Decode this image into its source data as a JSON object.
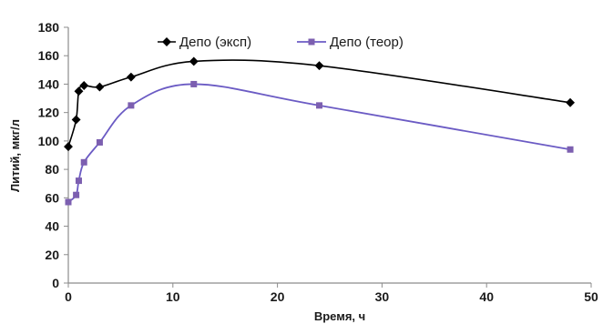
{
  "chart_data": {
    "type": "line",
    "xlabel": "Время, ч",
    "ylabel": "Литий, мкг/л",
    "xlim": [
      0,
      50
    ],
    "ylim": [
      0,
      180
    ],
    "x_ticks": [
      0,
      10,
      20,
      30,
      40,
      50
    ],
    "y_ticks": [
      0,
      20,
      40,
      60,
      80,
      100,
      120,
      140,
      160,
      180
    ],
    "grid": false,
    "legend": "top",
    "series": [
      {
        "name": "Депо (эксп)",
        "color": "#000000",
        "marker": "diamond",
        "x": [
          0,
          0.75,
          1,
          1.5,
          3,
          6,
          12,
          24,
          48
        ],
        "y": [
          96,
          115,
          135,
          139,
          138,
          145,
          156,
          153,
          127
        ]
      },
      {
        "name": "Депо (теор)",
        "color": "#6b5bc4",
        "marker": "square",
        "x": [
          0,
          0.75,
          1,
          1.5,
          3,
          6,
          12,
          24,
          48
        ],
        "y": [
          57,
          62,
          72,
          85,
          99,
          125,
          140,
          125,
          94
        ]
      }
    ]
  }
}
